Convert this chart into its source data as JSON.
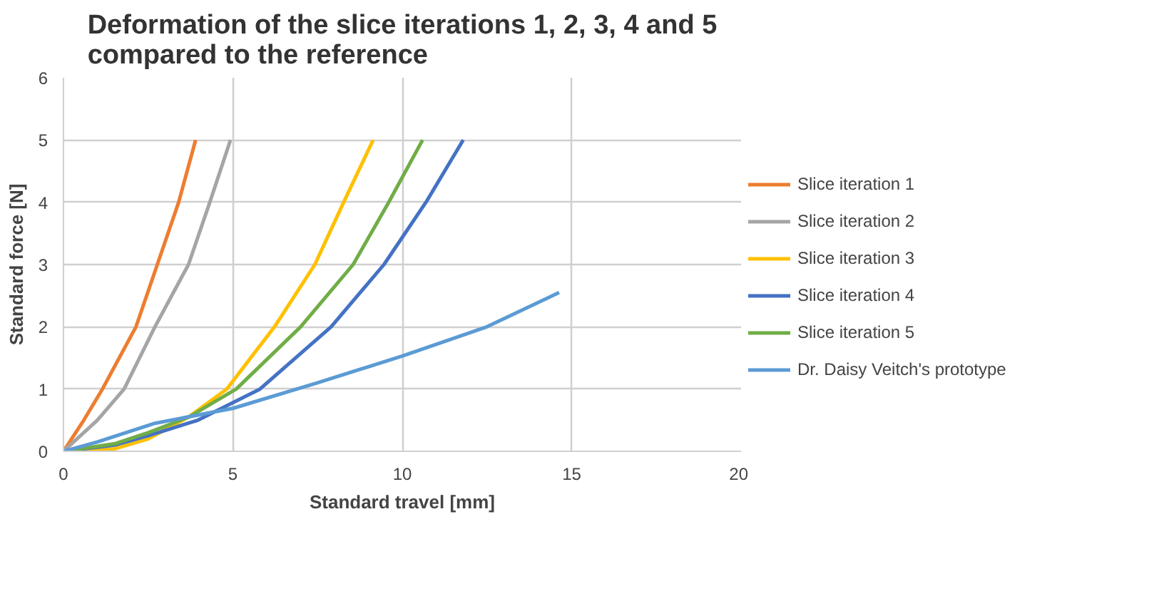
{
  "chart_data": {
    "type": "line",
    "title": "Deformation of the slice iterations 1, 2, 3, 4 and 5\ncompared to the reference",
    "xlabel": "Standard travel [mm]",
    "ylabel": "Standard force [N]",
    "xlim": [
      0,
      20
    ],
    "xticks": [
      0,
      5,
      10,
      15,
      20
    ],
    "ylim": [
      0,
      6
    ],
    "yticks": [
      0,
      1,
      2,
      3,
      4,
      5,
      6
    ],
    "grid": true,
    "legend": "right",
    "marker": "none",
    "line_style": "solid",
    "series": [
      {
        "name": "Slice iteration 1",
        "color": "#ed7d31",
        "x": [
          0,
          0.6,
          1.15,
          2.14,
          2.77,
          3.4,
          3.9
        ],
        "values": [
          0,
          0.5,
          1,
          2,
          3,
          4,
          5
        ]
      },
      {
        "name": "Slice iteration 2",
        "color": "#a5a5a5",
        "x": [
          0,
          1,
          1.79,
          2.7,
          3.69,
          4.32,
          4.93
        ],
        "values": [
          0,
          0.5,
          1,
          2,
          3,
          4,
          5
        ]
      },
      {
        "name": "Slice iteration 3",
        "color": "#ffc000",
        "x": [
          0,
          1.5,
          2.5,
          3.69,
          4.82,
          6.23,
          7.42,
          8.27,
          9.14
        ],
        "values": [
          0,
          0.04,
          0.2,
          0.55,
          1,
          2,
          3,
          4,
          5
        ]
      },
      {
        "name": "Slice iteration 4",
        "color": "#4472c4",
        "x": [
          0,
          1.5,
          2.5,
          3.97,
          5.8,
          7.9,
          9.46,
          10.7,
          11.8
        ],
        "values": [
          0,
          0.1,
          0.25,
          0.5,
          1,
          2,
          3,
          4,
          5
        ]
      },
      {
        "name": "Slice iteration 5",
        "color": "#70ad47",
        "x": [
          0,
          1.5,
          2.5,
          3.7,
          5.1,
          7,
          8.55,
          9.6,
          10.6
        ],
        "values": [
          0,
          0.12,
          0.3,
          0.55,
          1,
          2,
          3,
          4,
          5
        ]
      },
      {
        "name": "Dr. Daisy Veitch's prototype",
        "color": "#5b9bd5",
        "x": [
          0,
          1,
          2.7,
          5,
          7.5,
          10,
          12.5,
          14.63
        ],
        "values": [
          0,
          0.15,
          0.45,
          0.69,
          1.1,
          1.53,
          2,
          2.55
        ]
      }
    ]
  }
}
